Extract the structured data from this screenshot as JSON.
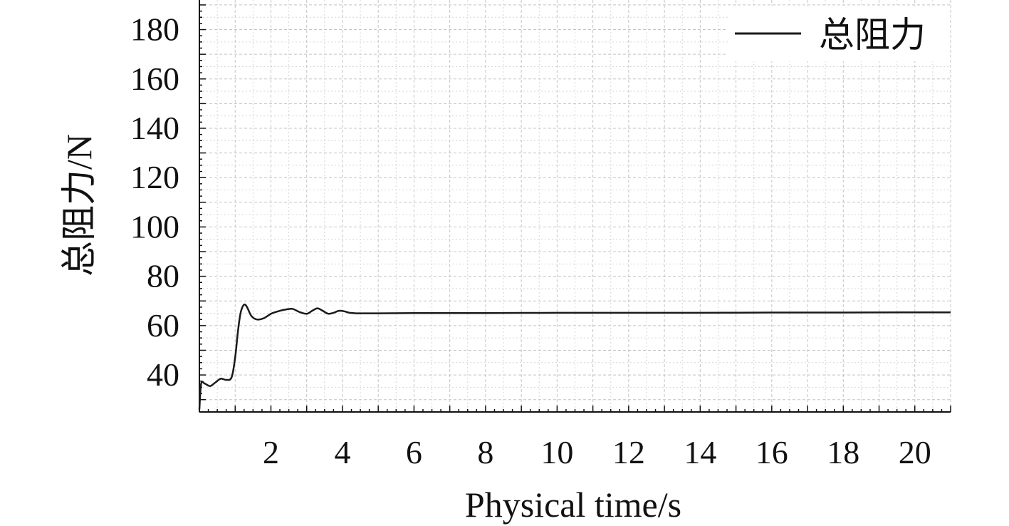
{
  "chart_data": {
    "type": "line",
    "xlabel": "Physical time/s",
    "ylabel": "总阻力/N",
    "xlim": [
      0,
      21
    ],
    "ylim": [
      25,
      192
    ],
    "x_ticks": [
      2,
      4,
      6,
      8,
      10,
      12,
      14,
      16,
      18,
      20
    ],
    "y_ticks": [
      40,
      60,
      80,
      100,
      120,
      140,
      160,
      180
    ],
    "grid": true,
    "legend_position": "top-right",
    "series": [
      {
        "name": "总阻力",
        "color": "#1a1a1a",
        "x": [
          0.0,
          0.05,
          0.15,
          0.3,
          0.45,
          0.6,
          0.75,
          0.9,
          1.0,
          1.08,
          1.15,
          1.22,
          1.28,
          1.35,
          1.45,
          1.6,
          1.8,
          2.0,
          2.2,
          2.4,
          2.6,
          2.8,
          3.0,
          3.15,
          3.3,
          3.45,
          3.6,
          3.75,
          3.9,
          4.05,
          4.2,
          4.4,
          4.6,
          5.0,
          6.0,
          8.0,
          10.0,
          12.0,
          14.0,
          16.0,
          18.0,
          20.0,
          21.0
        ],
        "y": [
          26,
          36.5,
          36.5,
          35.5,
          37,
          38.5,
          38,
          39,
          47,
          58,
          65,
          68,
          68.5,
          67,
          64,
          62.5,
          63,
          64.8,
          65.8,
          66.5,
          66.8,
          65.5,
          64.8,
          66,
          67,
          66,
          64.8,
          65.2,
          66,
          65.8,
          65.2,
          65.0,
          65.0,
          65.0,
          65.1,
          65.1,
          65.2,
          65.2,
          65.2,
          65.3,
          65.3,
          65.4,
          65.4
        ]
      }
    ]
  }
}
